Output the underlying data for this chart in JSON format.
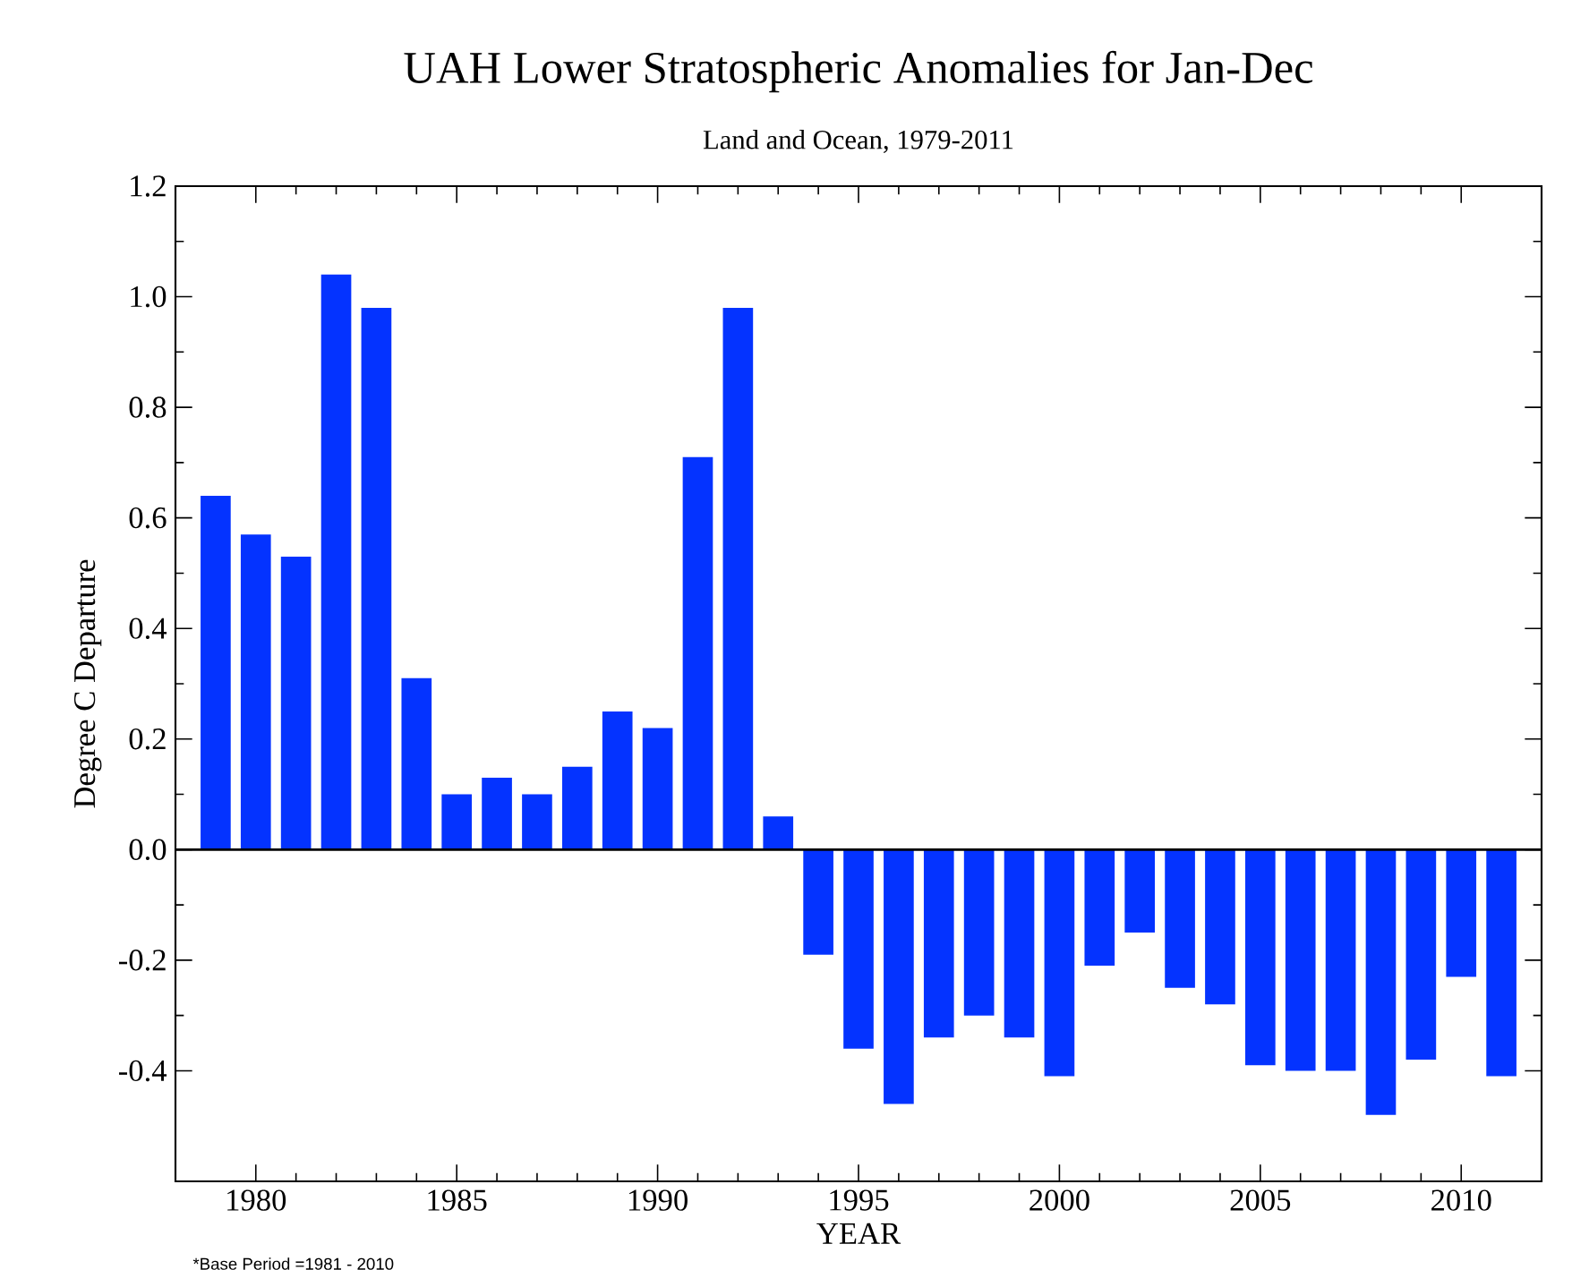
{
  "chart_data": {
    "type": "bar",
    "title": "UAH Lower Stratospheric Anomalies for Jan-Dec",
    "subtitle": "Land and Ocean, 1979-2011",
    "xlabel": "YEAR",
    "ylabel": "Degree C Departure",
    "annotations": [
      "*Base Period =1981 - 2010"
    ],
    "x": [
      1979,
      1980,
      1981,
      1982,
      1983,
      1984,
      1985,
      1986,
      1987,
      1988,
      1989,
      1990,
      1991,
      1992,
      1993,
      1994,
      1995,
      1996,
      1997,
      1998,
      1999,
      2000,
      2001,
      2002,
      2003,
      2004,
      2005,
      2006,
      2007,
      2008,
      2009,
      2010,
      2011
    ],
    "values": [
      0.64,
      0.57,
      0.53,
      1.04,
      0.98,
      0.31,
      0.1,
      0.13,
      0.1,
      0.15,
      0.25,
      0.22,
      0.71,
      0.98,
      0.06,
      -0.19,
      -0.36,
      -0.46,
      -0.34,
      -0.3,
      -0.34,
      -0.41,
      -0.21,
      -0.15,
      -0.25,
      -0.28,
      -0.39,
      -0.4,
      -0.4,
      -0.48,
      -0.38,
      -0.23,
      -0.41
    ],
    "color": "#0433ff",
    "xlim": [
      1978,
      2012
    ],
    "xticks": [
      1980,
      1985,
      1990,
      1995,
      2000,
      2005,
      2010
    ],
    "ylim": [
      -0.6,
      1.2
    ],
    "yticks": [
      {
        "value": -0.4,
        "label": "-0.4"
      },
      {
        "value": -0.2,
        "label": "-0.2"
      },
      {
        "value": 0.0,
        "label": "0.0"
      },
      {
        "value": 0.2,
        "label": "0.2"
      },
      {
        "value": 0.4,
        "label": "0.4"
      },
      {
        "value": 0.6,
        "label": "0.6"
      },
      {
        "value": 0.8,
        "label": "0.8"
      },
      {
        "value": 1.0,
        "label": "1.0"
      },
      {
        "value": 1.2,
        "label": "1.2"
      }
    ],
    "ref_lines": [
      {
        "axis": "y",
        "value": 0,
        "color": "#000000"
      }
    ]
  }
}
